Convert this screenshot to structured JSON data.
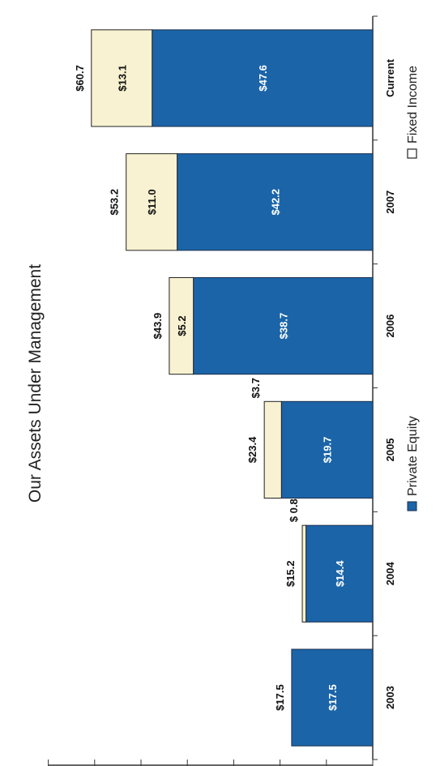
{
  "chart_data": {
    "type": "bar",
    "stacked": true,
    "orientation": "rotated",
    "title": "Our Assets Under Management",
    "categories": [
      "2003",
      "2004",
      "2005",
      "2006",
      "2007",
      "Current"
    ],
    "series": [
      {
        "name": "Private Equity",
        "values": [
          17.5,
          14.4,
          19.7,
          38.7,
          42.2,
          47.6
        ],
        "labels": [
          "$17.5",
          "$14.4",
          "$19.7",
          "$38.7",
          "$42.2",
          "$47.6"
        ]
      },
      {
        "name": "Fixed Income",
        "values": [
          0,
          0.8,
          3.7,
          5.2,
          11.0,
          13.1
        ],
        "labels": [
          "",
          "$ 0.8",
          "$3.7",
          "$5.2",
          "$11.0",
          "$13.1"
        ]
      }
    ],
    "totals": [
      "$17.5",
      "$15.2",
      "$23.4",
      "$43.9",
      "$53.2",
      "$60.7"
    ],
    "total_values": [
      17.5,
      15.2,
      23.4,
      43.9,
      53.2,
      60.7
    ],
    "ylim": [
      0,
      70
    ],
    "colors": {
      "Private Equity": "#1b64a8",
      "Fixed Income": "#f8f2d2"
    },
    "legend": [
      "Private Equity",
      "Fixed Income"
    ]
  }
}
